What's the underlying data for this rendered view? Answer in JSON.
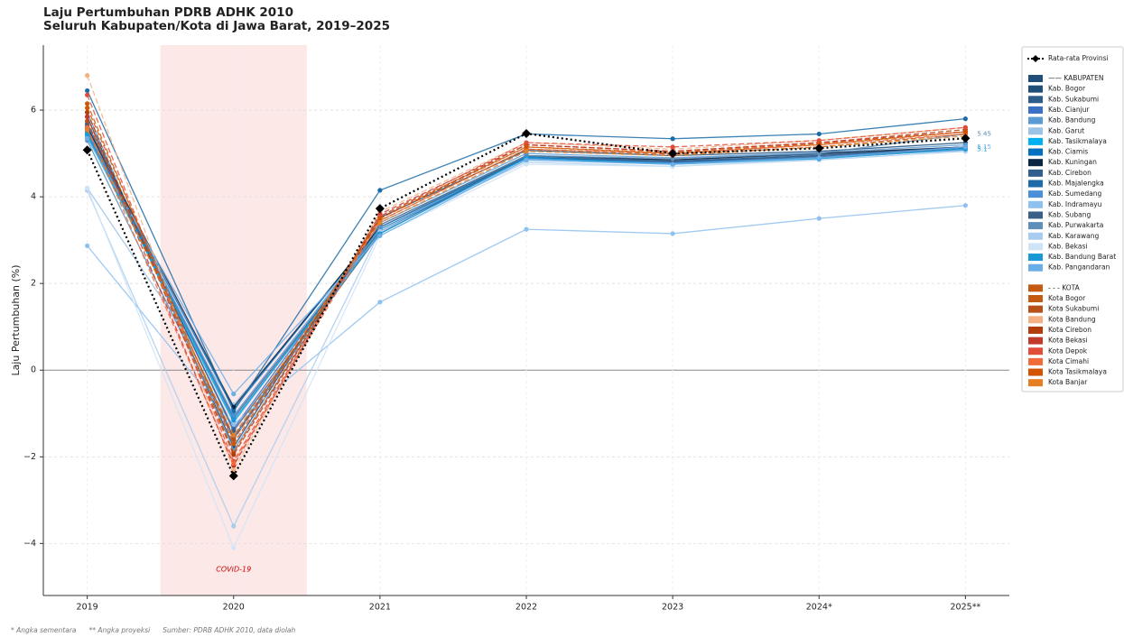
{
  "chart_data": {
    "type": "line",
    "title": "Laju Pertumbuhan PDRB ADHK 2010",
    "subtitle": "Seluruh Kabupaten/Kota di Jawa Barat, 2019–2025",
    "y_label": "Laju Pertumbuhan (%)",
    "categories": [
      "2019",
      "2020",
      "2021",
      "2022",
      "2023",
      "2024*",
      "2025**"
    ],
    "ylim": [
      -5.2,
      7.5
    ],
    "yticks": [
      {
        "value": -4,
        "label": "−4"
      },
      {
        "value": -2,
        "label": "−2"
      },
      0,
      2,
      4,
      6
    ],
    "grid": true,
    "shade": {
      "category": 1,
      "label": "COVID-19",
      "color": "#fde8e8"
    },
    "legend_position": "right",
    "legend_headers": {
      "solid": "—— KABUPATEN",
      "dashed": "- - - KOTA"
    },
    "notes": [
      "* Angka sementara",
      "** Angka proyeksi",
      "Sumber: PDRB ADHK 2010, data diolah"
    ],
    "series": [
      {
        "name": "Rata-rata Provinsi",
        "style": "dotted",
        "color": "#000000",
        "values": [
          5.08,
          -2.44,
          3.73,
          5.46,
          5.0,
          5.12,
          5.35
        ]
      },
      {
        "name": "Kab. Bogor",
        "style": "solid",
        "color": "#1f4e79",
        "values": [
          5.85,
          -1.77,
          3.52,
          5.07,
          4.95,
          5.05,
          5.25
        ]
      },
      {
        "name": "Kab. Sukabumi",
        "style": "solid",
        "color": "#2e5c8a",
        "values": [
          5.65,
          -1.55,
          3.35,
          4.95,
          4.85,
          4.98,
          5.15
        ]
      },
      {
        "name": "Kab. Cianjur",
        "style": "solid",
        "color": "#3a6fc4",
        "values": [
          5.55,
          -1.35,
          3.3,
          4.9,
          4.8,
          4.95,
          5.1
        ]
      },
      {
        "name": "Kab. Bandung",
        "style": "solid",
        "color": "#5b9bd5",
        "values": [
          5.95,
          -1.85,
          3.4,
          5.0,
          4.9,
          5.02,
          5.2
        ]
      },
      {
        "name": "Kab. Garut",
        "style": "solid",
        "color": "#9dc3e6",
        "values": [
          4.2,
          -0.8,
          3.2,
          4.85,
          4.75,
          4.95,
          5.1
        ]
      },
      {
        "name": "Kab. Tasikmalaya",
        "style": "solid",
        "color": "#00b0f0",
        "values": [
          5.4,
          -1.2,
          3.25,
          4.9,
          4.78,
          4.9,
          5.1
        ]
      },
      {
        "name": "Kab. Ciamis",
        "style": "solid",
        "color": "#0070c0",
        "values": [
          5.5,
          -0.9,
          3.3,
          4.92,
          4.82,
          4.95,
          5.12
        ]
      },
      {
        "name": "Kab. Kuningan",
        "style": "solid",
        "color": "#0b2545",
        "values": [
          5.6,
          -0.85,
          3.3,
          4.95,
          4.85,
          5.0,
          5.15
        ]
      },
      {
        "name": "Kab. Cirebon",
        "style": "solid",
        "color": "#305f8f",
        "values": [
          5.45,
          -1.1,
          3.2,
          4.9,
          4.8,
          4.92,
          5.1
        ]
      },
      {
        "name": "Kab. Majalengka",
        "style": "solid",
        "color": "#1b6ca8",
        "values": [
          6.45,
          -0.95,
          4.15,
          5.45,
          5.34,
          5.45,
          5.8
        ]
      },
      {
        "name": "Kab. Sumedang",
        "style": "solid",
        "color": "#4a90d9",
        "values": [
          5.5,
          -1.05,
          3.25,
          4.88,
          4.78,
          4.9,
          5.08
        ]
      },
      {
        "name": "Kab. Indramayu",
        "style": "solid",
        "color": "#8fc1f0",
        "values": [
          2.87,
          -1.25,
          1.57,
          3.25,
          3.15,
          3.5,
          3.8
        ]
      },
      {
        "name": "Kab. Subang",
        "style": "solid",
        "color": "#3b5f86",
        "values": [
          5.7,
          -1.4,
          3.15,
          4.95,
          4.82,
          4.95,
          5.15
        ]
      },
      {
        "name": "Kab. Purwakarta",
        "style": "solid",
        "color": "#5d8fb8",
        "values": [
          5.3,
          -1.6,
          3.3,
          4.95,
          4.88,
          5.0,
          5.45
        ],
        "value_labels": [
          null,
          null,
          null,
          null,
          null,
          null,
          "5.45"
        ]
      },
      {
        "name": "Kab. Karawang",
        "style": "solid",
        "color": "#a9cdf0",
        "values": [
          4.15,
          -3.6,
          3.2,
          4.8,
          4.7,
          4.85,
          5.05
        ]
      },
      {
        "name": "Kab. Bekasi",
        "style": "solid",
        "color": "#cfe4f7",
        "values": [
          4.2,
          -4.1,
          3.1,
          4.75,
          4.7,
          4.88,
          5.1
        ]
      },
      {
        "name": "Kab. Bandung Barat",
        "style": "solid",
        "color": "#1899d6",
        "values": [
          5.45,
          -1.15,
          3.15,
          4.9,
          4.75,
          4.88,
          5.1
        ],
        "value_labels": [
          null,
          null,
          null,
          null,
          null,
          null,
          "5.1"
        ]
      },
      {
        "name": "Kab. Pangandaran",
        "style": "solid",
        "color": "#6aaee8",
        "values": [
          5.35,
          -0.55,
          3.1,
          4.85,
          4.75,
          4.9,
          5.15
        ],
        "value_labels": [
          null,
          null,
          null,
          null,
          null,
          null,
          "5.15"
        ]
      },
      {
        "name": "Kota Bogor",
        "style": "dashed",
        "color": "#c55a11",
        "values": [
          6.15,
          -1.9,
          3.55,
          5.15,
          5.0,
          5.2,
          5.5
        ]
      },
      {
        "name": "Kota Sukabumi",
        "style": "dashed",
        "color": "#b8501a",
        "values": [
          5.75,
          -1.6,
          3.45,
          5.1,
          4.98,
          5.15,
          5.45
        ]
      },
      {
        "name": "Kota Bandung",
        "style": "dashed",
        "color": "#f4b183",
        "values": [
          6.8,
          -2.3,
          3.65,
          5.25,
          5.1,
          5.3,
          5.6
        ]
      },
      {
        "name": "Kota Cirebon",
        "style": "dashed",
        "color": "#b33c0c",
        "values": [
          5.95,
          -1.95,
          3.5,
          5.2,
          5.05,
          5.25,
          5.55
        ]
      },
      {
        "name": "Kota Bekasi",
        "style": "dashed",
        "color": "#c0392b",
        "values": [
          5.85,
          -2.2,
          3.6,
          5.2,
          5.05,
          5.25,
          5.5
        ]
      },
      {
        "name": "Kota Depok",
        "style": "dashed",
        "color": "#e04e3a",
        "values": [
          6.35,
          -2.1,
          3.55,
          5.25,
          5.15,
          5.3,
          5.6
        ]
      },
      {
        "name": "Kota Cimahi",
        "style": "dashed",
        "color": "#f26b3a",
        "values": [
          5.6,
          -2.15,
          3.45,
          5.1,
          5.0,
          5.2,
          5.45
        ]
      },
      {
        "name": "Kota Tasikmalaya",
        "style": "dashed",
        "color": "#d35400",
        "values": [
          6.05,
          -1.7,
          3.5,
          5.15,
          5.02,
          5.22,
          5.5
        ]
      },
      {
        "name": "Kota Banjar",
        "style": "dashed",
        "color": "#e67e22",
        "values": [
          5.55,
          -1.5,
          3.4,
          5.05,
          4.95,
          5.15,
          5.4
        ]
      }
    ]
  }
}
